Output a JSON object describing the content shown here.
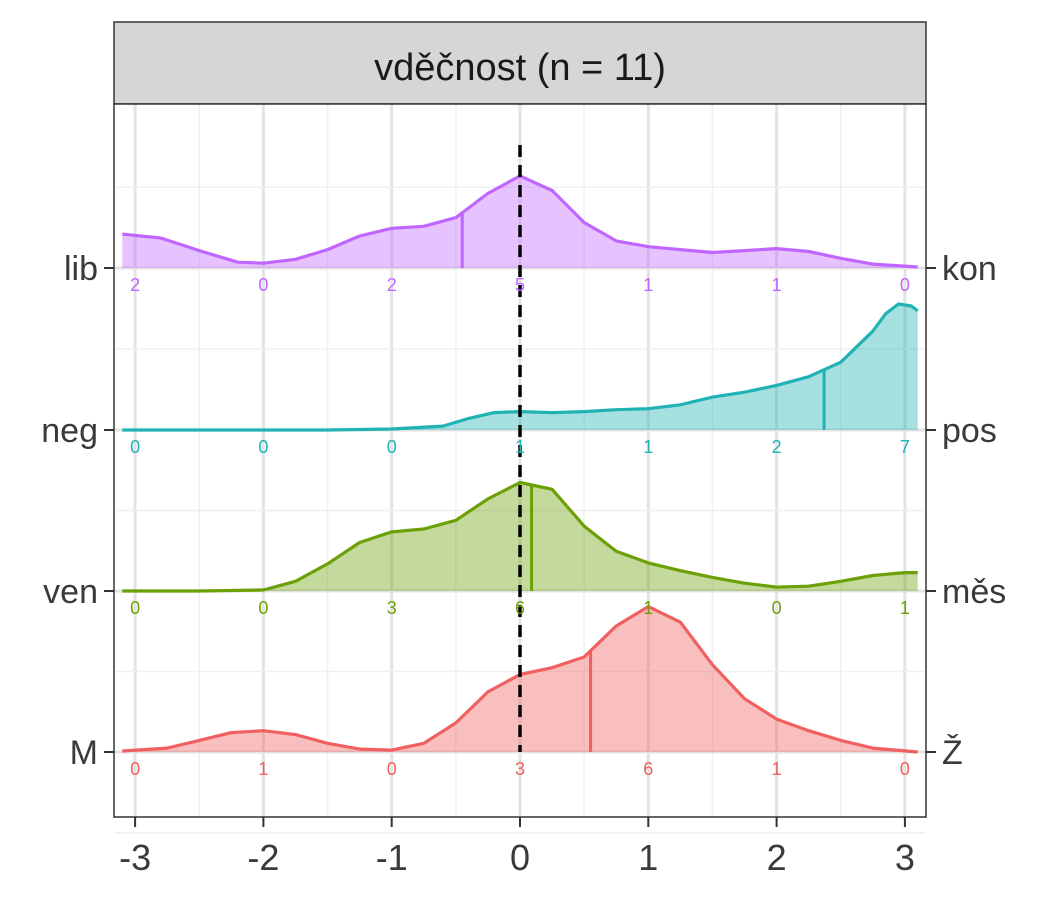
{
  "chart_data": {
    "type": "area",
    "title": "vděčnost (n = 11)",
    "x_ticks": [
      "-3",
      "-2",
      "-1",
      "0",
      "1",
      "2",
      "3"
    ],
    "x_tick_values": [
      -3,
      -2,
      -1,
      0,
      1,
      2,
      3
    ],
    "xlim": [
      -3.1,
      3.1
    ],
    "reference_line_x": 0,
    "grid": true,
    "series": [
      {
        "name_left": "lib",
        "name_right": "kon",
        "color": "#c066ff",
        "counts": [
          "2",
          "0",
          "2",
          "5",
          "1",
          "1",
          "0"
        ],
        "mean": -0.45,
        "density": [
          [
            -3.1,
            0.35
          ],
          [
            -2.8,
            0.31
          ],
          [
            -2.5,
            0.18
          ],
          [
            -2.2,
            0.06
          ],
          [
            -2.0,
            0.05
          ],
          [
            -1.75,
            0.09
          ],
          [
            -1.5,
            0.19
          ],
          [
            -1.25,
            0.33
          ],
          [
            -1.0,
            0.41
          ],
          [
            -0.75,
            0.43
          ],
          [
            -0.5,
            0.52
          ],
          [
            -0.25,
            0.77
          ],
          [
            0.0,
            0.95
          ],
          [
            0.25,
            0.8
          ],
          [
            0.5,
            0.47
          ],
          [
            0.75,
            0.28
          ],
          [
            1.0,
            0.22
          ],
          [
            1.25,
            0.19
          ],
          [
            1.5,
            0.16
          ],
          [
            1.75,
            0.18
          ],
          [
            2.0,
            0.2
          ],
          [
            2.25,
            0.17
          ],
          [
            2.5,
            0.1
          ],
          [
            2.75,
            0.04
          ],
          [
            3.1,
            0.01
          ]
        ]
      },
      {
        "name_left": "neg",
        "name_right": "pos",
        "color": "#20b2b4",
        "counts": [
          "0",
          "0",
          "0",
          "1",
          "1",
          "2",
          "7"
        ],
        "mean": 2.37,
        "density": [
          [
            -3.1,
            0.0
          ],
          [
            -2.5,
            0.0
          ],
          [
            -2.0,
            0.0
          ],
          [
            -1.5,
            0.0
          ],
          [
            -1.0,
            0.01
          ],
          [
            -0.6,
            0.04
          ],
          [
            -0.4,
            0.12
          ],
          [
            -0.2,
            0.18
          ],
          [
            0.0,
            0.19
          ],
          [
            0.25,
            0.18
          ],
          [
            0.5,
            0.19
          ],
          [
            0.75,
            0.21
          ],
          [
            1.0,
            0.22
          ],
          [
            1.25,
            0.26
          ],
          [
            1.5,
            0.34
          ],
          [
            1.75,
            0.39
          ],
          [
            2.0,
            0.46
          ],
          [
            2.25,
            0.55
          ],
          [
            2.5,
            0.7
          ],
          [
            2.75,
            1.02
          ],
          [
            2.85,
            1.2
          ],
          [
            2.95,
            1.3
          ],
          [
            3.05,
            1.28
          ],
          [
            3.1,
            1.23
          ]
        ]
      },
      {
        "name_left": "ven",
        "name_right": "měs",
        "color": "#6ca007",
        "counts": [
          "0",
          "0",
          "3",
          "6",
          "1",
          "0",
          "1"
        ],
        "mean": 0.09,
        "density": [
          [
            -3.1,
            0.0
          ],
          [
            -2.5,
            0.0
          ],
          [
            -2.0,
            0.01
          ],
          [
            -1.75,
            0.1
          ],
          [
            -1.5,
            0.28
          ],
          [
            -1.25,
            0.5
          ],
          [
            -1.0,
            0.61
          ],
          [
            -0.75,
            0.64
          ],
          [
            -0.5,
            0.73
          ],
          [
            -0.25,
            0.95
          ],
          [
            0.0,
            1.12
          ],
          [
            0.25,
            1.05
          ],
          [
            0.5,
            0.67
          ],
          [
            0.75,
            0.41
          ],
          [
            1.0,
            0.29
          ],
          [
            1.25,
            0.21
          ],
          [
            1.5,
            0.14
          ],
          [
            1.75,
            0.08
          ],
          [
            2.0,
            0.04
          ],
          [
            2.25,
            0.05
          ],
          [
            2.5,
            0.1
          ],
          [
            2.75,
            0.16
          ],
          [
            3.0,
            0.19
          ],
          [
            3.1,
            0.19
          ]
        ]
      },
      {
        "name_left": "M",
        "name_right": "Ž",
        "color": "#f06060",
        "counts": [
          "0",
          "1",
          "0",
          "3",
          "6",
          "1",
          "0"
        ],
        "mean": 0.55,
        "density": [
          [
            -3.1,
            0.01
          ],
          [
            -2.75,
            0.04
          ],
          [
            -2.5,
            0.12
          ],
          [
            -2.25,
            0.2
          ],
          [
            -2.0,
            0.22
          ],
          [
            -1.75,
            0.18
          ],
          [
            -1.5,
            0.09
          ],
          [
            -1.25,
            0.03
          ],
          [
            -1.0,
            0.02
          ],
          [
            -0.75,
            0.09
          ],
          [
            -0.5,
            0.3
          ],
          [
            -0.25,
            0.62
          ],
          [
            0.0,
            0.8
          ],
          [
            0.25,
            0.87
          ],
          [
            0.5,
            0.98
          ],
          [
            0.75,
            1.3
          ],
          [
            1.0,
            1.5
          ],
          [
            1.25,
            1.34
          ],
          [
            1.5,
            0.9
          ],
          [
            1.75,
            0.55
          ],
          [
            2.0,
            0.34
          ],
          [
            2.25,
            0.22
          ],
          [
            2.5,
            0.12
          ],
          [
            2.75,
            0.04
          ],
          [
            3.1,
            0.0
          ]
        ]
      }
    ]
  }
}
